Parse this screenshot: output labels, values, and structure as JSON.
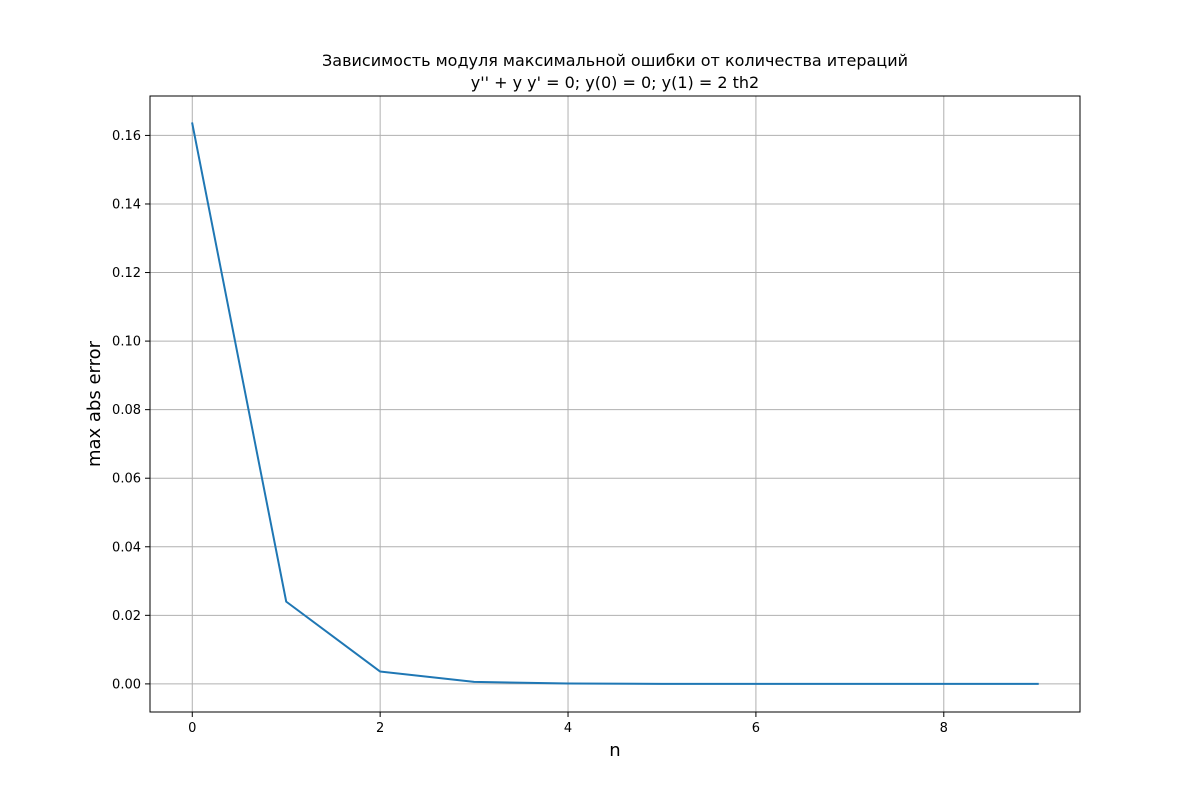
{
  "chart_data": {
    "type": "line",
    "title": "Зависимость модуля максимальной ошибки от количества итераций",
    "subtitle": "y'' + y y' = 0; y(0) = 0; y(1) = 2 th2",
    "xlabel": "n",
    "ylabel": "max abs  error",
    "xlim": [
      -0.45,
      9.45
    ],
    "ylim": [
      -0.0082,
      0.1715
    ],
    "xticks": [
      0,
      2,
      4,
      6,
      8
    ],
    "xtick_labels": [
      "0",
      "2",
      "4",
      "6",
      "8"
    ],
    "yticks": [
      0.0,
      0.02,
      0.04,
      0.06,
      0.08,
      0.1,
      0.12,
      0.14,
      0.16
    ],
    "ytick_labels": [
      "0.00",
      "0.02",
      "0.04",
      "0.06",
      "0.08",
      "0.10",
      "0.12",
      "0.14",
      "0.16"
    ],
    "grid": true,
    "series": [
      {
        "color": "#1f77b4",
        "x": [
          0,
          1,
          2,
          3,
          4,
          5,
          6,
          7,
          8,
          9
        ],
        "values": [
          0.1635,
          0.024,
          0.0036,
          0.0006,
          0.0001,
          2e-05,
          3e-06,
          5e-07,
          1e-07,
          2e-08
        ]
      }
    ]
  }
}
